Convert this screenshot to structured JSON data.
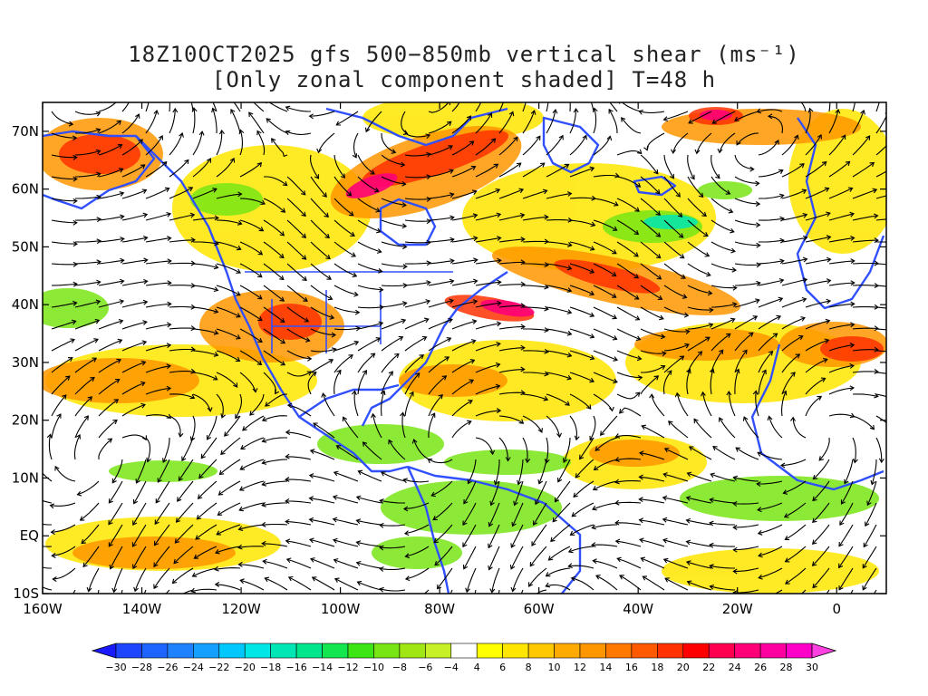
{
  "title": {
    "line1": "18Z10OCT2025 gfs 500−850mb vertical shear (ms⁻¹)",
    "line2": "[Only zonal component shaded] T=48 h"
  },
  "map": {
    "lon_range": [
      -160,
      10
    ],
    "lat_range": [
      -10,
      75
    ],
    "y_ticks": [
      "70N",
      "60N",
      "50N",
      "40N",
      "30N",
      "20N",
      "10N",
      "EQ",
      "10S"
    ],
    "y_tick_values": [
      70,
      60,
      50,
      40,
      30,
      20,
      10,
      0,
      -10
    ],
    "x_ticks": [
      "160W",
      "140W",
      "120W",
      "100W",
      "80W",
      "60W",
      "40W",
      "20W",
      "0"
    ],
    "x_tick_values": [
      -160,
      -140,
      -120,
      -100,
      -80,
      -60,
      -40,
      -20,
      0
    ],
    "coastline_color": "#3050ff",
    "streamline_color": "#000000"
  },
  "colorbar": {
    "labels": [
      "−30",
      "−28",
      "−26",
      "−24",
      "−22",
      "−20",
      "−18",
      "−16",
      "−14",
      "−12",
      "−10",
      "−8",
      "−6",
      "−4",
      "4",
      "6",
      "8",
      "10",
      "12",
      "14",
      "16",
      "18",
      "20",
      "22",
      "24",
      "26",
      "28",
      "30"
    ],
    "colors": [
      "#1a1aff",
      "#1e46ff",
      "#1e64ff",
      "#1e82ff",
      "#14a0ff",
      "#00c8ff",
      "#00e6e6",
      "#00e6b4",
      "#00e68c",
      "#14e650",
      "#3ce614",
      "#78e614",
      "#a0e614",
      "#c8f028",
      "#ffffff",
      "#ffff00",
      "#ffe600",
      "#ffc800",
      "#ffaa00",
      "#ff9600",
      "#ff7800",
      "#ff5a00",
      "#ff3200",
      "#ff0000",
      "#ff0050",
      "#ff0078",
      "#ff00a0",
      "#ff00c8",
      "#ff40e0"
    ]
  }
}
